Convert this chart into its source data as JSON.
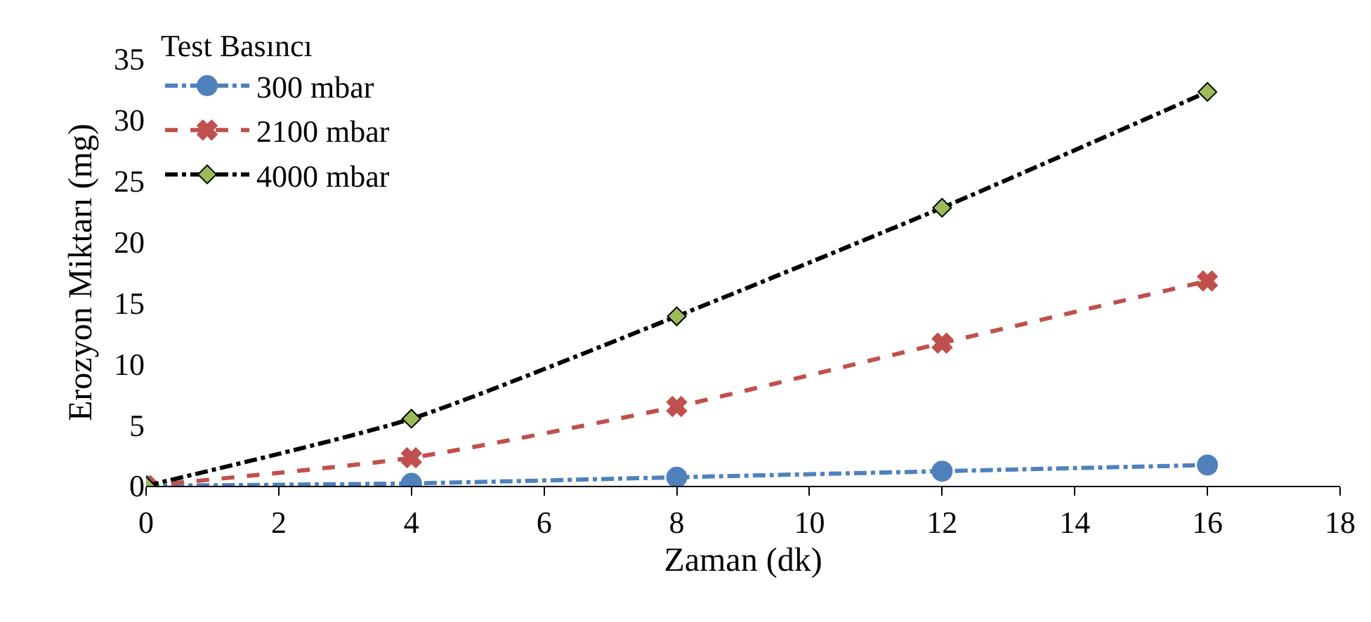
{
  "chart_data": {
    "type": "line",
    "legend_title": "Test Basıncı",
    "xlabel": "Zaman (dk)",
    "ylabel": "Erozyon Miktarı (mg)",
    "x": [
      0,
      4,
      8,
      12,
      16
    ],
    "series": [
      {
        "name": "300 mbar",
        "color": "#4f81bd",
        "marker": "circle",
        "line_style": "dashdot",
        "values": [
          0,
          0.2,
          0.7,
          1.2,
          1.7
        ]
      },
      {
        "name": "2100 mbar",
        "color": "#c0504d",
        "marker": "cross",
        "line_style": "dashed",
        "values": [
          0,
          2.3,
          6.5,
          11.7,
          16.8
        ]
      },
      {
        "name": "4000 mbar",
        "color": "#000000",
        "colors": [
          "#9bbb59",
          "#9bbb59",
          "#9bbb59",
          "#9bbb59",
          "#9bbb59"
        ],
        "marker": "diamond",
        "line_style": "dashdot",
        "values": [
          0,
          5.5,
          13.9,
          22.8,
          32.3
        ]
      }
    ],
    "xlim": [
      0,
      18
    ],
    "xticks": [
      0,
      2,
      4,
      6,
      8,
      10,
      12,
      14,
      16,
      18
    ],
    "ylim": [
      0,
      35
    ],
    "yticks": [
      0,
      5,
      10,
      15,
      20,
      25,
      30,
      35
    ],
    "grid": false,
    "legend": "top left"
  }
}
